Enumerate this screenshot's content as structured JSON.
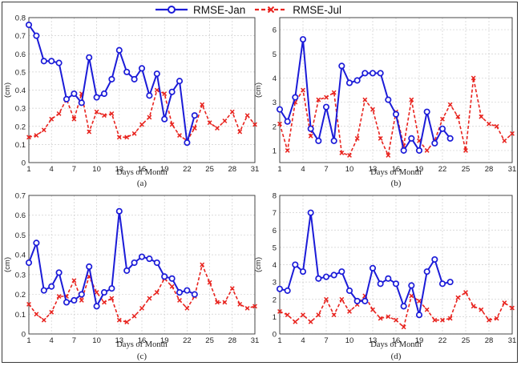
{
  "legend": {
    "jan_label": "RMSE-Jan",
    "jul_label": "RMSE-Jul"
  },
  "colors": {
    "jan": "#1b1bd8",
    "jul": "#e8231e",
    "grid": "#cfcfcf",
    "axis": "#333333"
  },
  "chart_data": [
    {
      "type": "line",
      "panel_label": "(a)",
      "xlabel": "Days of Month",
      "ylabel": "(cm)",
      "xlim": [
        1,
        31
      ],
      "ylim": [
        0,
        0.8
      ],
      "xticks": [
        1,
        4,
        7,
        10,
        13,
        16,
        19,
        22,
        25,
        28,
        31
      ],
      "yticks": [
        0,
        0.1,
        0.2,
        0.3,
        0.4,
        0.5,
        0.6,
        0.7,
        0.8
      ],
      "ytick_labels": [
        "0",
        "0.1",
        "0.2",
        "0.3",
        "0.4",
        "0.5",
        "0.6",
        "0.7",
        "0.8"
      ],
      "series": [
        {
          "name": "RMSE-Jan",
          "x": [
            1,
            2,
            3,
            4,
            5,
            6,
            7,
            8,
            9,
            10,
            11,
            12,
            13,
            14,
            15,
            16,
            17,
            18,
            19,
            20,
            21,
            22,
            23
          ],
          "values": [
            0.76,
            0.7,
            0.56,
            0.56,
            0.55,
            0.35,
            0.38,
            0.33,
            0.58,
            0.36,
            0.38,
            0.46,
            0.62,
            0.5,
            0.46,
            0.52,
            0.37,
            0.49,
            0.24,
            0.39,
            0.45,
            0.11,
            0.26
          ]
        },
        {
          "name": "RMSE-Jul",
          "x": [
            1,
            2,
            3,
            4,
            5,
            6,
            7,
            8,
            9,
            10,
            11,
            12,
            13,
            14,
            15,
            16,
            17,
            18,
            19,
            20,
            21,
            22,
            23,
            24,
            25,
            26,
            27,
            28,
            29,
            30,
            31
          ],
          "values": [
            0.14,
            0.15,
            0.18,
            0.24,
            0.27,
            0.35,
            0.24,
            0.38,
            0.17,
            0.28,
            0.26,
            0.27,
            0.14,
            0.14,
            0.16,
            0.21,
            0.25,
            0.4,
            0.38,
            0.21,
            0.15,
            0.12,
            0.19,
            0.32,
            0.22,
            0.19,
            0.23,
            0.28,
            0.17,
            0.26,
            0.21
          ]
        }
      ]
    },
    {
      "type": "line",
      "panel_label": "(b)",
      "xlabel": "Days of Month",
      "ylabel": "(cm)",
      "xlim": [
        1,
        31
      ],
      "ylim": [
        0.5,
        6.5
      ],
      "xticks": [
        1,
        4,
        7,
        10,
        13,
        16,
        19,
        22,
        25,
        28,
        31
      ],
      "yticks": [
        1,
        2,
        3,
        4,
        5,
        6
      ],
      "ytick_labels": [
        "1",
        "2",
        "3",
        "4",
        "5",
        "6"
      ],
      "series": [
        {
          "name": "RMSE-Jan",
          "x": [
            1,
            2,
            3,
            4,
            5,
            6,
            7,
            8,
            9,
            10,
            11,
            12,
            13,
            14,
            15,
            16,
            17,
            18,
            19,
            20,
            21,
            22,
            23
          ],
          "values": [
            2.7,
            2.2,
            3.2,
            5.6,
            1.9,
            1.4,
            2.8,
            1.4,
            4.5,
            3.8,
            3.9,
            4.2,
            4.2,
            4.2,
            3.1,
            2.5,
            1.0,
            1.5,
            1.0,
            2.6,
            1.3,
            1.9,
            1.5
          ]
        },
        {
          "name": "RMSE-Jul",
          "x": [
            1,
            2,
            3,
            4,
            5,
            6,
            7,
            8,
            9,
            10,
            11,
            12,
            13,
            14,
            15,
            16,
            17,
            18,
            19,
            20,
            21,
            22,
            23,
            24,
            25,
            26,
            27,
            28,
            29,
            30,
            31
          ],
          "values": [
            2.1,
            1.0,
            3.0,
            3.5,
            1.6,
            3.1,
            3.2,
            3.4,
            0.9,
            0.8,
            1.5,
            3.1,
            2.7,
            1.5,
            0.8,
            2.6,
            1.2,
            3.1,
            1.4,
            1.0,
            1.4,
            2.3,
            2.9,
            2.4,
            1.0,
            4.0,
            2.4,
            2.1,
            2.0,
            1.4,
            1.7
          ]
        }
      ]
    },
    {
      "type": "line",
      "panel_label": "(c)",
      "xlabel": "Days of Month",
      "ylabel": "(cm)",
      "xlim": [
        1,
        31
      ],
      "ylim": [
        0,
        0.7
      ],
      "xticks": [
        1,
        4,
        7,
        10,
        13,
        16,
        19,
        22,
        25,
        28,
        31
      ],
      "yticks": [
        0,
        0.1,
        0.2,
        0.3,
        0.4,
        0.5,
        0.6,
        0.7
      ],
      "ytick_labels": [
        "0",
        "0.1",
        "0.2",
        "0.3",
        "0.4",
        "0.5",
        "0.6",
        "0.7"
      ],
      "series": [
        {
          "name": "RMSE-Jan",
          "x": [
            1,
            2,
            3,
            4,
            5,
            6,
            7,
            8,
            9,
            10,
            11,
            12,
            13,
            14,
            15,
            16,
            17,
            18,
            19,
            20,
            21,
            22,
            23
          ],
          "values": [
            0.36,
            0.46,
            0.22,
            0.24,
            0.31,
            0.16,
            0.17,
            0.2,
            0.34,
            0.14,
            0.21,
            0.23,
            0.62,
            0.32,
            0.36,
            0.39,
            0.38,
            0.36,
            0.29,
            0.28,
            0.21,
            0.22,
            0.2
          ]
        },
        {
          "name": "RMSE-Jul",
          "x": [
            1,
            2,
            3,
            4,
            5,
            6,
            7,
            8,
            9,
            10,
            11,
            12,
            13,
            14,
            15,
            16,
            17,
            18,
            19,
            20,
            21,
            22,
            23,
            24,
            25,
            26,
            27,
            28,
            29,
            30,
            31
          ],
          "values": [
            0.15,
            0.1,
            0.07,
            0.11,
            0.19,
            0.19,
            0.27,
            0.17,
            0.29,
            0.21,
            0.16,
            0.18,
            0.07,
            0.06,
            0.09,
            0.13,
            0.18,
            0.21,
            0.28,
            0.24,
            0.17,
            0.13,
            0.19,
            0.35,
            0.26,
            0.16,
            0.16,
            0.23,
            0.15,
            0.13,
            0.14
          ]
        }
      ]
    },
    {
      "type": "line",
      "panel_label": "(d)",
      "xlabel": "Days of Month",
      "ylabel": "(cm)",
      "xlim": [
        1,
        31
      ],
      "ylim": [
        0,
        8
      ],
      "xticks": [
        1,
        4,
        7,
        10,
        13,
        16,
        19,
        22,
        25,
        28,
        31
      ],
      "yticks": [
        0,
        1,
        2,
        3,
        4,
        5,
        6,
        7,
        8
      ],
      "ytick_labels": [
        "0",
        "1",
        "2",
        "3",
        "4",
        "5",
        "6",
        "7",
        "8"
      ],
      "series": [
        {
          "name": "RMSE-Jan",
          "x": [
            1,
            2,
            3,
            4,
            5,
            6,
            7,
            8,
            9,
            10,
            11,
            12,
            13,
            14,
            15,
            16,
            17,
            18,
            19,
            20,
            21,
            22,
            23
          ],
          "values": [
            2.6,
            2.5,
            4.0,
            3.6,
            7.0,
            3.2,
            3.3,
            3.4,
            3.6,
            2.5,
            1.9,
            1.9,
            3.8,
            2.9,
            3.2,
            2.9,
            1.6,
            2.8,
            1.1,
            3.6,
            4.3,
            2.9,
            3.0
          ]
        },
        {
          "name": "RMSE-Jul",
          "x": [
            1,
            2,
            3,
            4,
            5,
            6,
            7,
            8,
            9,
            10,
            11,
            12,
            13,
            14,
            15,
            16,
            17,
            18,
            19,
            20,
            21,
            22,
            23,
            24,
            25,
            26,
            27,
            28,
            29,
            30,
            31
          ],
          "values": [
            1.3,
            1.1,
            0.7,
            1.1,
            0.7,
            1.1,
            2.0,
            1.1,
            2.0,
            1.3,
            1.7,
            2.2,
            1.4,
            0.9,
            1.0,
            0.8,
            0.4,
            2.2,
            1.9,
            1.4,
            0.8,
            0.8,
            0.9,
            2.1,
            2.4,
            1.6,
            1.4,
            0.8,
            0.9,
            1.8,
            1.5
          ]
        }
      ]
    }
  ]
}
